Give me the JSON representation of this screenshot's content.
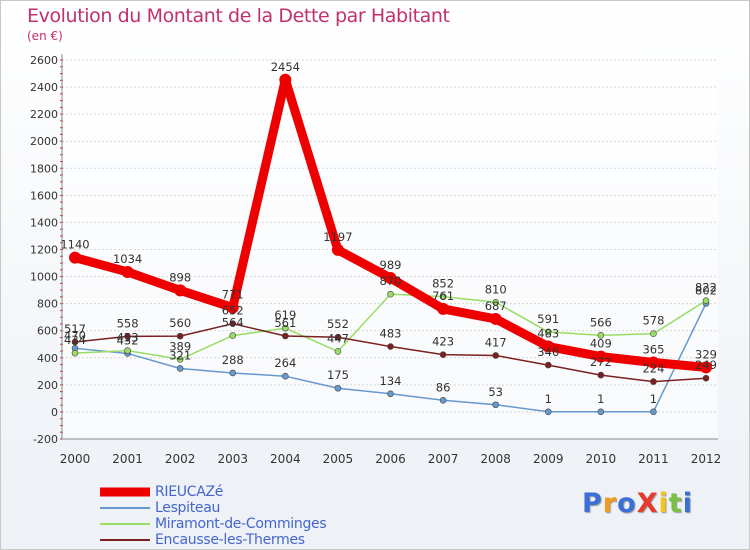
{
  "title": "Evolution du Montant de la Dette par Habitant",
  "subtitle": "(en €)",
  "logo": {
    "text": "ProXiti",
    "letters": [
      {
        "ch": "P",
        "color": "#3b6fd6"
      },
      {
        "ch": "r",
        "color": "#f29a1a"
      },
      {
        "ch": "o",
        "color": "#3b6fd6"
      },
      {
        "ch": "X",
        "color": "#e83a2c"
      },
      {
        "ch": "i",
        "color": "#f4c51a"
      },
      {
        "ch": "t",
        "color": "#7ac143"
      },
      {
        "ch": "i",
        "color": "#3b6fd6"
      }
    ]
  },
  "chart_data": {
    "type": "line",
    "title": "Evolution du Montant de la Dette par Habitant",
    "subtitle": "(en €)",
    "x": [
      "2000",
      "2001",
      "2002",
      "2003",
      "2004",
      "2005",
      "2006",
      "2007",
      "2008",
      "2009",
      "2010",
      "2011",
      "2012"
    ],
    "ylim": [
      -200,
      2600
    ],
    "yticks": [
      -200,
      0,
      200,
      400,
      600,
      800,
      1000,
      1200,
      1400,
      1600,
      1800,
      2000,
      2200,
      2400,
      2600
    ],
    "grid": true,
    "legend_position": "bottom-left",
    "series": [
      {
        "name": "RIEUCAZé",
        "color": "#ee0000",
        "values": [
          1140,
          1034,
          898,
          771,
          2454,
          1197,
          989,
          761,
          687,
          483,
          409,
          365,
          329
        ]
      },
      {
        "name": "Lespiteau",
        "color": "#6699cc",
        "values": [
          470,
          432,
          321,
          288,
          264,
          175,
          134,
          86,
          53,
          1,
          1,
          1,
          802
        ]
      },
      {
        "name": "Miramont-de-Comminges",
        "color": "#99dd66",
        "values": [
          434,
          453,
          389,
          564,
          619,
          447,
          870,
          852,
          810,
          591,
          566,
          578,
          822
        ]
      },
      {
        "name": "Encausse-les-Thermes",
        "color": "#7a2020",
        "values": [
          517,
          558,
          560,
          652,
          561,
          552,
          483,
          423,
          417,
          346,
          272,
          224,
          249
        ]
      }
    ]
  }
}
